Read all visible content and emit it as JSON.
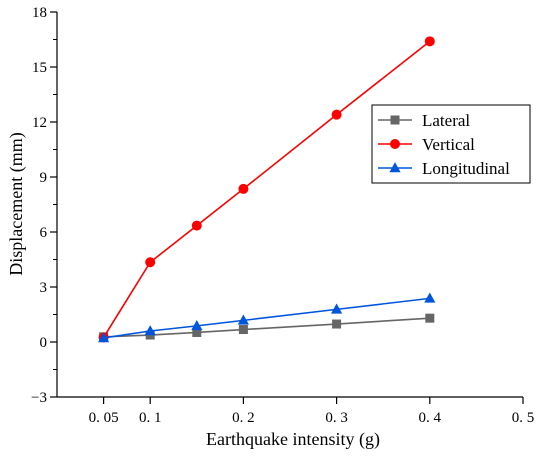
{
  "chart_data": {
    "type": "line",
    "title": "",
    "xlabel": "Earthquake intensity (g)",
    "ylabel": "Displacement (mm)",
    "xlim": [
      0,
      0.5
    ],
    "ylim": [
      -3,
      18
    ],
    "x_ticks": [
      0.05,
      0.1,
      0.2,
      0.3,
      0.4,
      0.5
    ],
    "x_tick_labels": [
      "0. 05",
      "0. 1",
      "0. 2",
      "0. 3",
      "0. 4",
      "0. 5"
    ],
    "y_ticks": [
      -3,
      0,
      3,
      6,
      9,
      12,
      15,
      18
    ],
    "y_tick_labels": [
      "−3",
      "0",
      "3",
      "6",
      "9",
      "12",
      "15",
      "18"
    ],
    "grid": false,
    "legend_position": "top-right",
    "x": [
      0.05,
      0.1,
      0.15,
      0.2,
      0.3,
      0.4
    ],
    "series": [
      {
        "name": "Lateral",
        "values": [
          0.28,
          0.38,
          0.52,
          0.68,
          0.98,
          1.3
        ],
        "color": "#666666",
        "marker": "square"
      },
      {
        "name": "Vertical",
        "values": [
          0.25,
          4.35,
          6.35,
          8.35,
          12.4,
          16.4
        ],
        "color": "#ff0000",
        "marker": "circle"
      },
      {
        "name": "Longitudinal",
        "values": [
          0.22,
          0.6,
          0.88,
          1.18,
          1.78,
          2.38
        ],
        "color": "#0055dd",
        "marker": "triangle"
      }
    ]
  }
}
